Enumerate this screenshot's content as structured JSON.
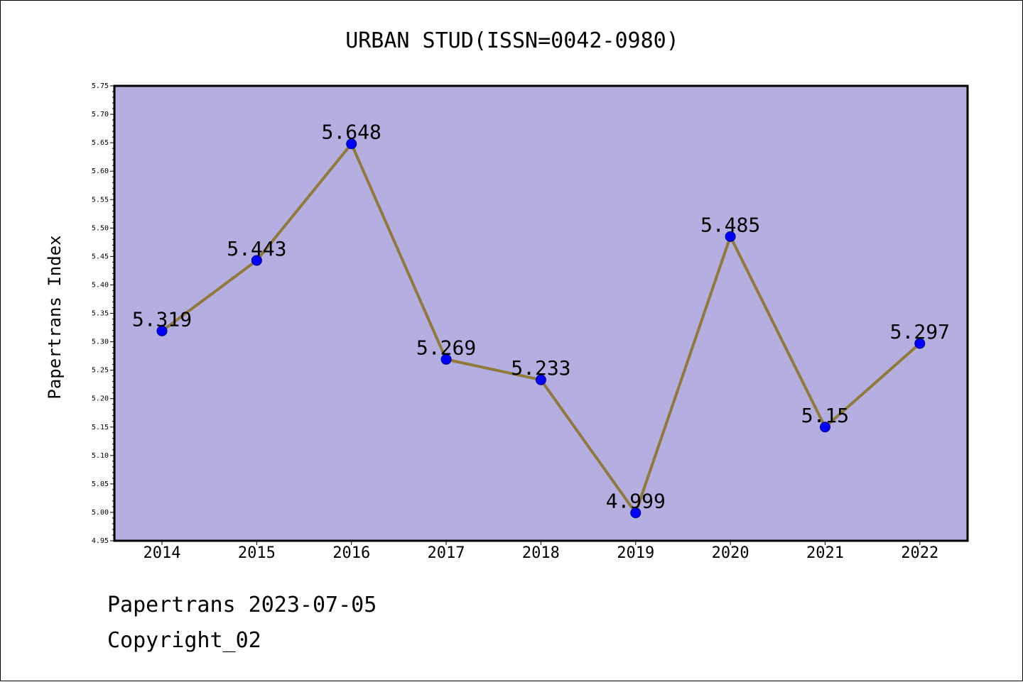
{
  "chart_data": {
    "type": "line",
    "title": "URBAN STUD(ISSN=0042-0980)",
    "xlabel": "",
    "ylabel": "Papertrans Index",
    "categories": [
      "2014",
      "2015",
      "2016",
      "2017",
      "2018",
      "2019",
      "2020",
      "2021",
      "2022"
    ],
    "values": [
      5.319,
      5.443,
      5.648,
      5.269,
      5.233,
      4.999,
      5.485,
      5.15,
      5.297
    ],
    "data_labels": [
      "5.319",
      "5.443",
      "5.648",
      "5.269",
      "5.233",
      "4.999",
      "5.485",
      "5.15",
      "5.297"
    ],
    "ylim": [
      4.95,
      5.75
    ],
    "yticks": [
      "4.95",
      "5.00",
      "5.05",
      "5.10",
      "5.15",
      "5.20",
      "5.25",
      "5.30",
      "5.35",
      "5.40",
      "5.45",
      "5.50",
      "5.55",
      "5.60",
      "5.65",
      "5.70",
      "5.75"
    ],
    "grid": false,
    "legend": "none",
    "colors": {
      "plot_background": "#b5aee0",
      "line": "#8f7a3c",
      "marker": "#0000ff",
      "axis": "#000000"
    }
  },
  "footer": {
    "line1": "Papertrans 2023-07-05",
    "line2": "Copyright_02"
  }
}
